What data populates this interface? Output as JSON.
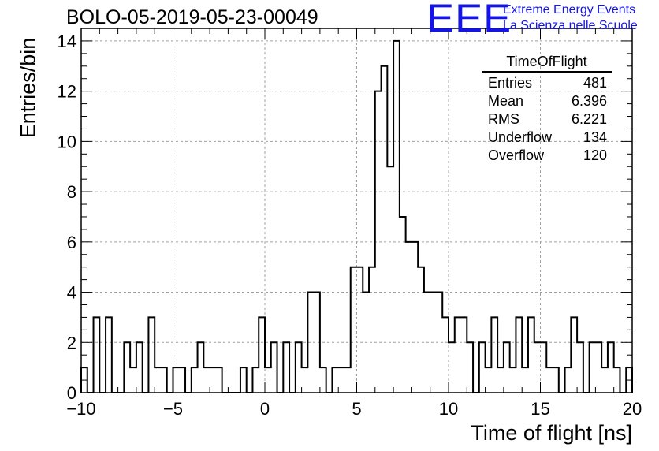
{
  "header": {
    "title": "BOLO-05-2019-05-23-00049",
    "logo": "EEE",
    "logo_line1": "Extreme Energy Events",
    "logo_line2": "La Scienza nelle Scuole"
  },
  "stats": {
    "name": "TimeOfFlight",
    "rows": [
      {
        "label": "Entries",
        "value": "481"
      },
      {
        "label": "Mean",
        "value": "6.396"
      },
      {
        "label": "RMS",
        "value": "6.221"
      },
      {
        "label": "Underflow",
        "value": "134"
      },
      {
        "label": "Overflow",
        "value": "120"
      }
    ]
  },
  "colors": {
    "line": "#000000",
    "grid": "#a0a0a0",
    "logo": "#1414e6"
  },
  "chart_data": {
    "type": "bar",
    "subtype": "histogram",
    "title": "BOLO-05-2019-05-23-00049",
    "xlabel": "Time of flight [ns]",
    "ylabel": "Entries/bin",
    "xlim": [
      -10,
      20
    ],
    "ylim": [
      0,
      14.5
    ],
    "bin_width": 0.333,
    "xticks": [
      -10,
      -5,
      0,
      5,
      10,
      15,
      20
    ],
    "xtick_labels": [
      "−10",
      "−5",
      "0",
      "5",
      "10",
      "15",
      "20"
    ],
    "yticks": [
      0,
      2,
      4,
      6,
      8,
      10,
      12,
      14
    ],
    "ytick_labels": [
      "0",
      "2",
      "4",
      "6",
      "8",
      "10",
      "12",
      "14"
    ],
    "grid": true,
    "values": [
      1,
      0,
      3,
      0,
      3,
      0,
      0,
      2,
      1,
      2,
      0,
      3,
      1,
      1,
      0,
      1,
      1,
      0,
      1,
      2,
      1,
      1,
      1,
      0,
      0,
      0,
      1,
      0,
      1,
      3,
      1,
      2,
      0,
      2,
      0,
      2,
      1,
      4,
      4,
      1,
      0,
      1,
      1,
      1,
      5,
      5,
      4,
      5,
      12,
      13,
      9,
      14,
      7,
      6,
      6,
      5,
      4,
      4,
      4,
      3,
      2,
      3,
      3,
      2,
      0,
      2,
      1,
      3,
      1,
      2,
      1,
      3,
      1,
      3,
      2,
      2,
      1,
      1,
      0,
      1,
      3,
      2,
      0,
      2,
      2,
      1,
      2,
      1,
      0,
      1
    ]
  }
}
